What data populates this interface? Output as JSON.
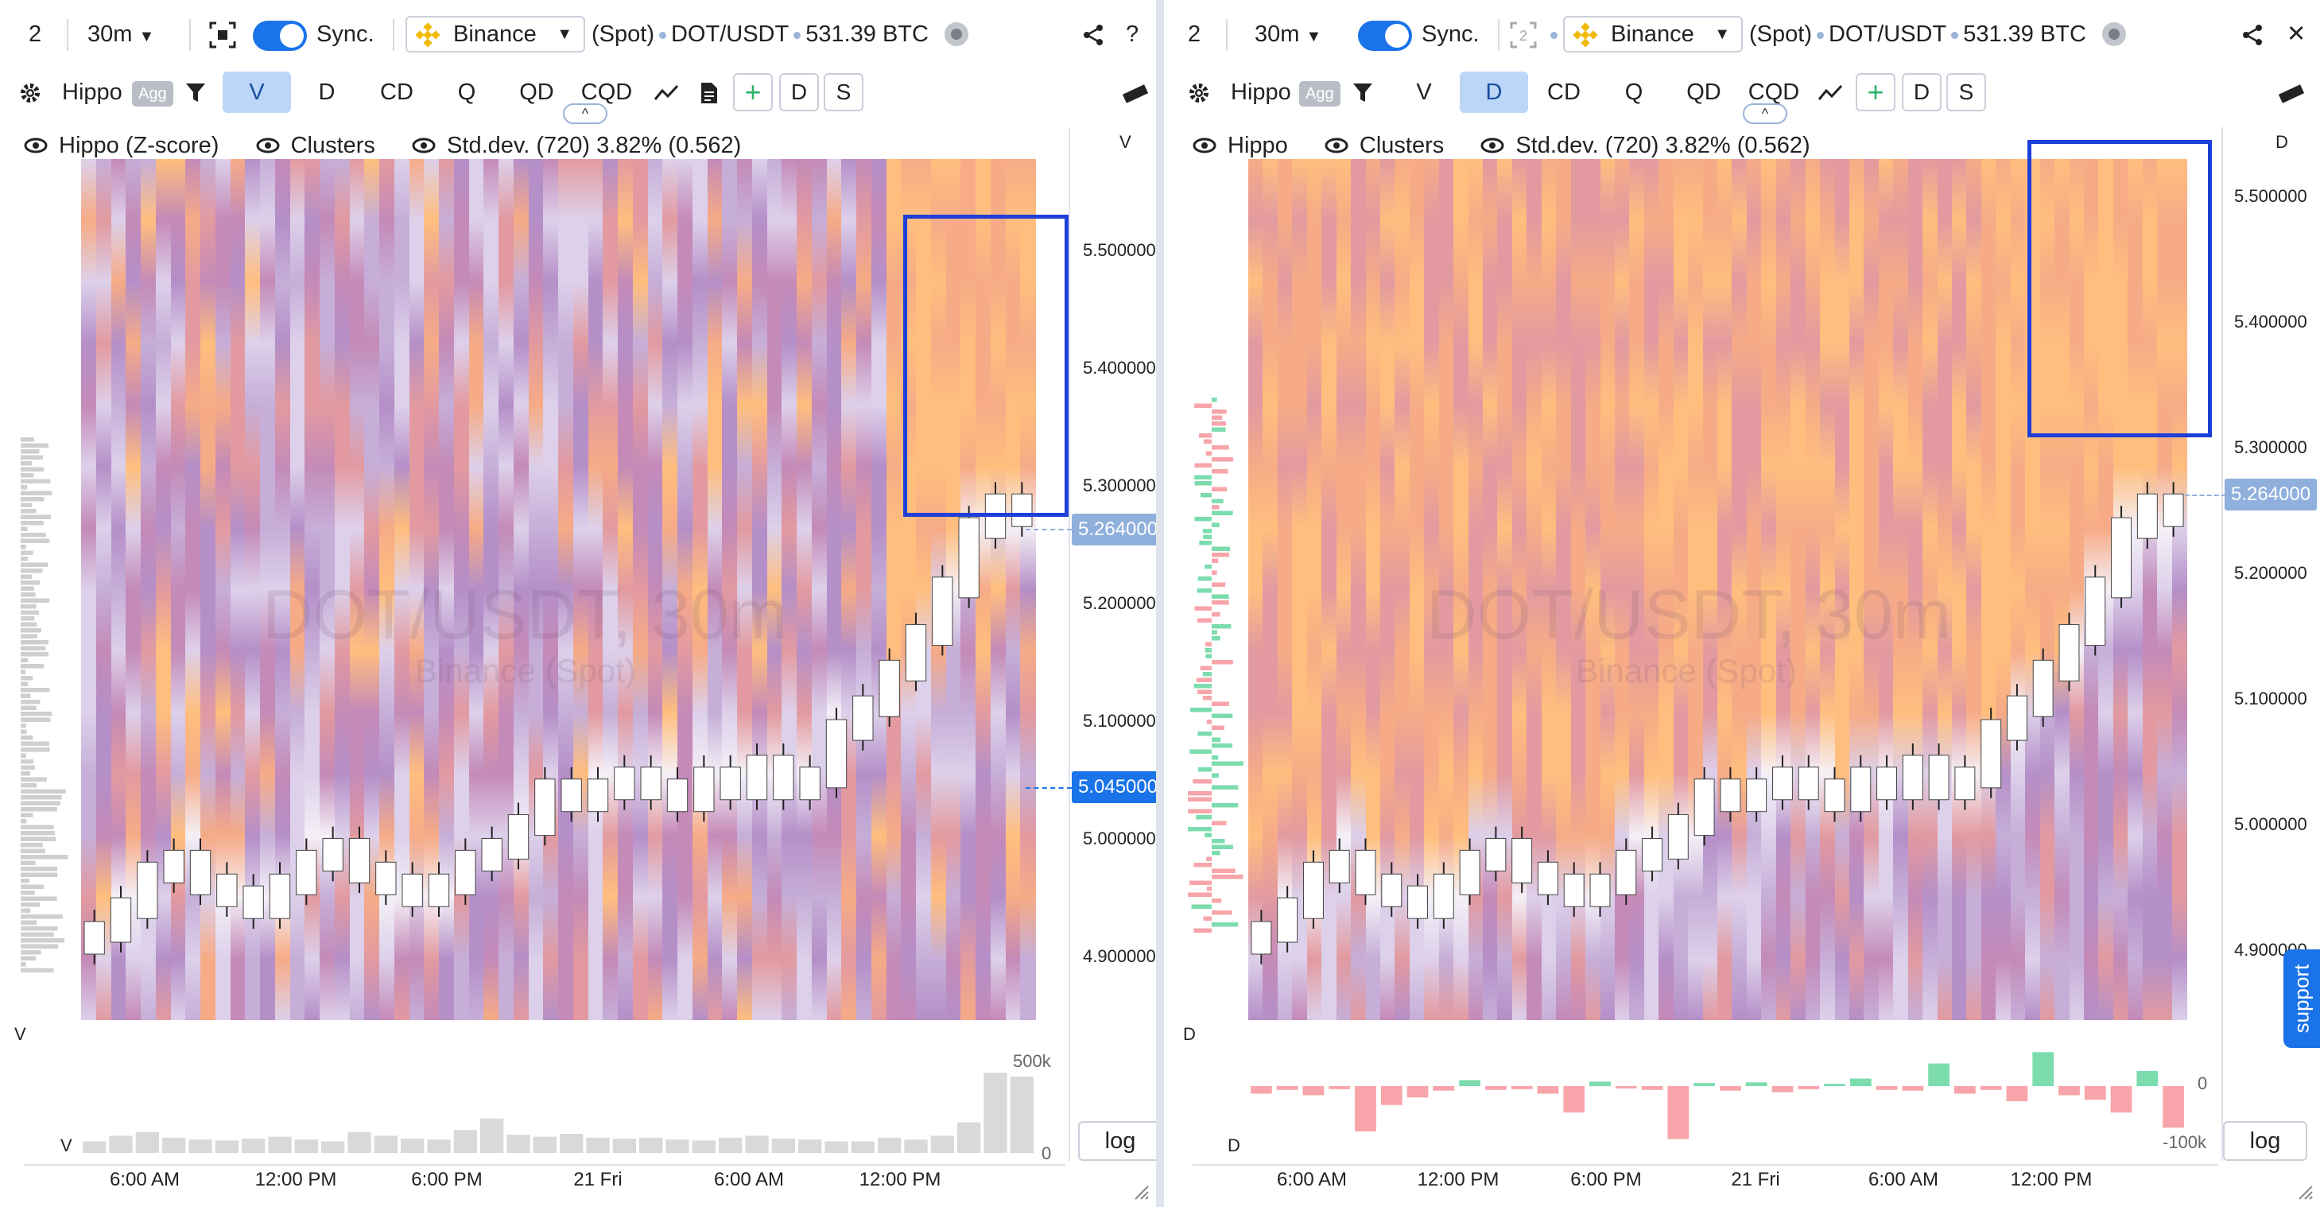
{
  "panels": [
    {
      "id": "left",
      "layout_count": "2",
      "timeframe": "30m",
      "sync_label": "Sync.",
      "exchange": "Binance",
      "market": "(Spot)",
      "pair": "DOT/USDT",
      "volume": "531.39 BTC",
      "tools": {
        "share_icon": "share-icon",
        "help_label": "?"
      },
      "indicator_name": "Hippo",
      "agg_label": "Agg",
      "tabs": [
        "V",
        "D",
        "CD",
        "Q",
        "QD",
        "CQD"
      ],
      "active_tab": "V",
      "boxes": [
        "D",
        "S"
      ],
      "legend": {
        "hippo": "Hippo (Z-score)",
        "clusters": "Clusters",
        "stddev": "Std.dev. (720) 3.82% (0.562)"
      },
      "watermark": {
        "title": "DOT/USDT, 30m",
        "subtitle": "Binance (Spot)"
      },
      "axis_top_label": "V",
      "price_ticks": [
        "5.500000",
        "5.400000",
        "5.300000",
        "5.200000",
        "5.100000",
        "5.000000",
        "4.900000"
      ],
      "price_badges": [
        "5.264000",
        "5.045000"
      ],
      "sub_pane_label": "V",
      "sub_pane_corner_label": "V",
      "sub_ticks": [
        "500k",
        "0"
      ],
      "log_label": "log",
      "time_labels": [
        "6:00 AM",
        "12:00 PM",
        "6:00 PM",
        "21 Fri",
        "6:00 AM",
        "12:00 PM"
      ]
    },
    {
      "id": "right",
      "layout_count": "2",
      "timeframe": "30m",
      "sync_label": "Sync.",
      "exchange": "Binance",
      "market": "(Spot)",
      "pair": "DOT/USDT",
      "volume": "531.39 BTC",
      "tools": {
        "share_icon": "share-icon",
        "close_label": "✕"
      },
      "indicator_name": "Hippo",
      "agg_label": "Agg",
      "tabs": [
        "V",
        "D",
        "CD",
        "Q",
        "QD",
        "CQD"
      ],
      "active_tab": "D",
      "boxes": [
        "D",
        "S"
      ],
      "legend": {
        "hippo": "Hippo",
        "clusters": "Clusters",
        "stddev": "Std.dev. (720) 3.82% (0.562)"
      },
      "watermark": {
        "title": "DOT/USDT, 30m",
        "subtitle": "Binance (Spot)"
      },
      "axis_top_label": "D",
      "price_ticks": [
        "5.500000",
        "5.400000",
        "5.300000",
        "5.200000",
        "5.100000",
        "5.000000",
        "4.900000"
      ],
      "price_badges": [
        "5.264000"
      ],
      "sub_pane_label": "D",
      "sub_pane_corner_label": "D",
      "sub_ticks": [
        "0",
        "-100k"
      ],
      "log_label": "log",
      "time_labels": [
        "6:00 AM",
        "12:00 PM",
        "6:00 PM",
        "21 Fri",
        "6:00 AM",
        "12:00 PM"
      ],
      "support_label": "support"
    }
  ],
  "colors": {
    "accent": "#1a73e8",
    "highlight_box": "#1e3fd8",
    "heat_palette": [
      "#f4f0f7",
      "#ddd0ea",
      "#c6aed8",
      "#b58fc8",
      "#c48ab8",
      "#e29aa0",
      "#f6ab86",
      "#ffbe7e",
      "#ffd27a",
      "#fff0a0"
    ],
    "delta_positive": "#7ddcae",
    "delta_negative": "#f7a5aa"
  },
  "chart_data": [
    {
      "type": "heatmap",
      "panel": "left",
      "title": "DOT/USDT, 30m",
      "indicator": "Hippo (Z-score)",
      "ylim": [
        4.855,
        5.58
      ],
      "price_close_approx": [
        4.93,
        4.95,
        4.98,
        4.99,
        4.97,
        4.96,
        4.95,
        4.97,
        4.99,
        5.0,
        4.98,
        4.97,
        4.96,
        4.97,
        4.99,
        5.0,
        5.02,
        5.05,
        5.04,
        5.05,
        5.06,
        5.05,
        5.04,
        5.06,
        5.05,
        5.07,
        5.05,
        5.06,
        5.1,
        5.12,
        5.15,
        5.18,
        5.22,
        5.27,
        5.29,
        5.28
      ],
      "volume_approx_k": [
        60,
        90,
        110,
        80,
        70,
        65,
        75,
        85,
        70,
        60,
        110,
        90,
        75,
        70,
        120,
        180,
        95,
        85,
        100,
        80,
        75,
        80,
        70,
        65,
        80,
        90,
        75,
        70,
        60,
        60,
        80,
        70,
        90,
        160,
        420,
        400
      ]
    },
    {
      "type": "heatmap",
      "panel": "right",
      "title": "DOT/USDT, 30m",
      "indicator": "Hippo",
      "ylim": [
        4.855,
        5.58
      ],
      "price_close_approx": [
        4.93,
        4.95,
        4.98,
        4.99,
        4.97,
        4.96,
        4.95,
        4.97,
        4.99,
        5.0,
        4.98,
        4.97,
        4.96,
        4.97,
        4.99,
        5.0,
        5.02,
        5.05,
        5.04,
        5.05,
        5.06,
        5.05,
        5.04,
        5.06,
        5.05,
        5.07,
        5.05,
        5.06,
        5.1,
        5.12,
        5.15,
        5.18,
        5.22,
        5.27,
        5.29,
        5.28
      ],
      "delta_approx_k": [
        -10,
        -5,
        -12,
        -4,
        -60,
        -25,
        -15,
        -6,
        8,
        -5,
        -4,
        -10,
        -35,
        6,
        -3,
        -5,
        -70,
        4,
        -6,
        5,
        -8,
        -4,
        3,
        10,
        -5,
        -6,
        30,
        -10,
        -5,
        -20,
        45,
        -12,
        -18,
        -35,
        20,
        -55
      ]
    }
  ]
}
